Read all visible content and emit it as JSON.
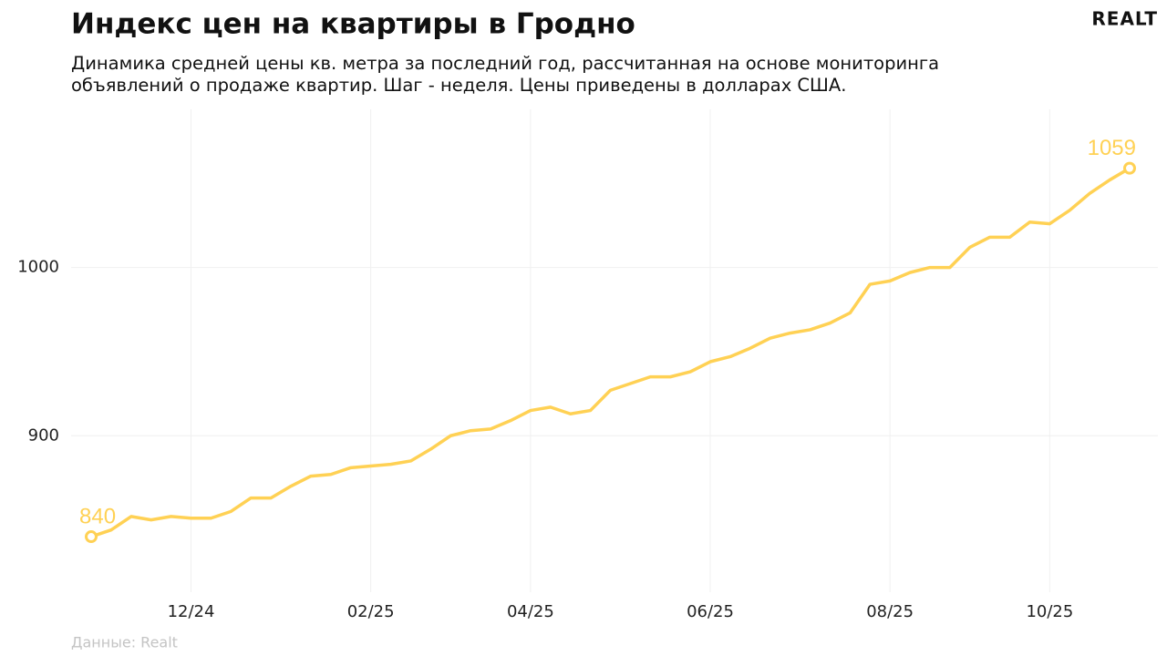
{
  "brand": "REALT",
  "chart_data": {
    "type": "line",
    "title": "Индекс цен на квартиры в Гродно",
    "subtitle": "Динамика средней цены кв. метра за последний год, рассчитанная на основе мониторинга объявлений о продаже квартир. Шаг - неделя. Цены приведены в долларах США.",
    "source": "Данные: Realt",
    "categories": [
      null,
      null,
      null,
      null,
      null,
      "12/24",
      null,
      null,
      null,
      null,
      null,
      null,
      null,
      null,
      "02/25",
      null,
      null,
      null,
      null,
      null,
      null,
      null,
      "04/25",
      null,
      null,
      null,
      null,
      null,
      null,
      null,
      null,
      "06/25",
      null,
      null,
      null,
      null,
      null,
      null,
      null,
      null,
      "08/25",
      null,
      null,
      null,
      null,
      null,
      null,
      null,
      "10/25",
      null,
      null,
      null,
      null
    ],
    "series": [
      {
        "name": "Индекс",
        "color": "#ffd154",
        "values": [
          840,
          844,
          852,
          850,
          852,
          851,
          851,
          855,
          863,
          863,
          870,
          876,
          877,
          881,
          882,
          883,
          885,
          892,
          900,
          903,
          904,
          909,
          915,
          917,
          913,
          915,
          927,
          931,
          935,
          935,
          938,
          944,
          947,
          952,
          958,
          961,
          963,
          967,
          973,
          990,
          992,
          997,
          1000,
          1000,
          1012,
          1018,
          1018,
          1027,
          1026,
          1034,
          1044,
          1052,
          1059
        ]
      }
    ],
    "ylim": [
      807,
      1094
    ],
    "yticks": [
      900,
      1000
    ],
    "grid": true
  }
}
